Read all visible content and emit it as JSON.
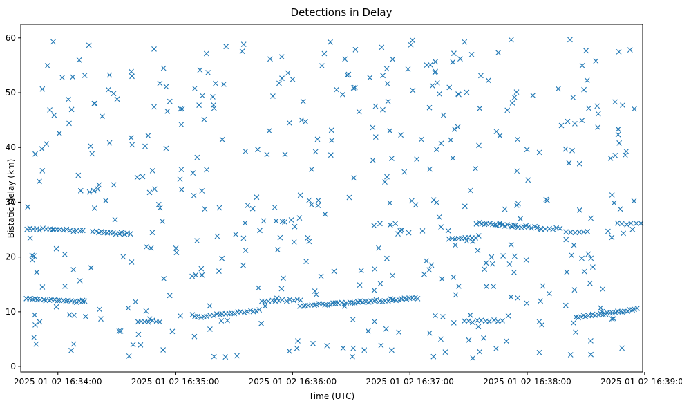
{
  "chart_data": {
    "type": "scatter",
    "title": "Detections in Delay",
    "xlabel": "Time (UTC)",
    "ylabel": "Bistatic Delay (km)",
    "marker": "x",
    "color": "#1f77b4",
    "x_ticks": [
      "2025-01-02 16:34:00",
      "2025-01-02 16:35:00",
      "2025-01-02 16:36:00",
      "2025-01-02 16:37:00",
      "2025-01-02 16:38:00",
      "2025-01-02 16:39:00"
    ],
    "x_tick_seconds": [
      0,
      60,
      120,
      180,
      240,
      300
    ],
    "y_ticks": [
      0,
      10,
      20,
      30,
      40,
      50,
      60
    ],
    "xlim_seconds": [
      -19,
      299
    ],
    "ylim": [
      -1,
      62.5
    ],
    "tracks": [
      {
        "name": "track-1",
        "t_start": -16,
        "t_end": 13,
        "y_start": 25.2,
        "y_end": 24.8,
        "count": 18
      },
      {
        "name": "track-2",
        "t_start": 18,
        "t_end": 37,
        "y_start": 24.6,
        "y_end": 24.2,
        "count": 14
      },
      {
        "name": "track-3",
        "t_start": -16,
        "t_end": 14,
        "y_start": 12.4,
        "y_end": 11.8,
        "count": 22
      },
      {
        "name": "track-4",
        "t_start": 41,
        "t_end": 52,
        "y_start": 8.2,
        "y_end": 8.3,
        "count": 7
      },
      {
        "name": "track-5",
        "t_start": 70,
        "t_end": 103,
        "y_start": 9.0,
        "y_end": 10.3,
        "count": 22
      },
      {
        "name": "track-6",
        "t_start": 104,
        "t_end": 124,
        "y_start": 11.9,
        "y_end": 12.2,
        "count": 12
      },
      {
        "name": "track-7",
        "t_start": 124,
        "t_end": 184,
        "y_start": 11.1,
        "y_end": 12.5,
        "count": 44
      },
      {
        "name": "track-8",
        "t_start": 214,
        "t_end": 245,
        "y_start": 26.2,
        "y_end": 25.4,
        "count": 24
      },
      {
        "name": "track-9",
        "t_start": 200,
        "t_end": 215,
        "y_start": 23.3,
        "y_end": 23.7,
        "count": 10
      },
      {
        "name": "track-10",
        "t_start": 208,
        "t_end": 227,
        "y_start": 8.2,
        "y_end": 8.4,
        "count": 10
      },
      {
        "name": "track-11",
        "t_start": 247,
        "t_end": 257,
        "y_start": 25.0,
        "y_end": 25.2,
        "count": 6
      },
      {
        "name": "track-12",
        "t_start": 260,
        "t_end": 271,
        "y_start": 24.6,
        "y_end": 24.6,
        "count": 6
      },
      {
        "name": "track-13",
        "t_start": 265,
        "t_end": 296,
        "y_start": 9.0,
        "y_end": 10.5,
        "count": 26
      },
      {
        "name": "track-14",
        "t_start": 286,
        "t_end": 298,
        "y_start": 26.1,
        "y_end": 26.1,
        "count": 6
      }
    ],
    "clutter": {
      "t_range": [
        -16,
        296
      ],
      "y_range": [
        1.5,
        59.8
      ],
      "count": 470
    }
  }
}
